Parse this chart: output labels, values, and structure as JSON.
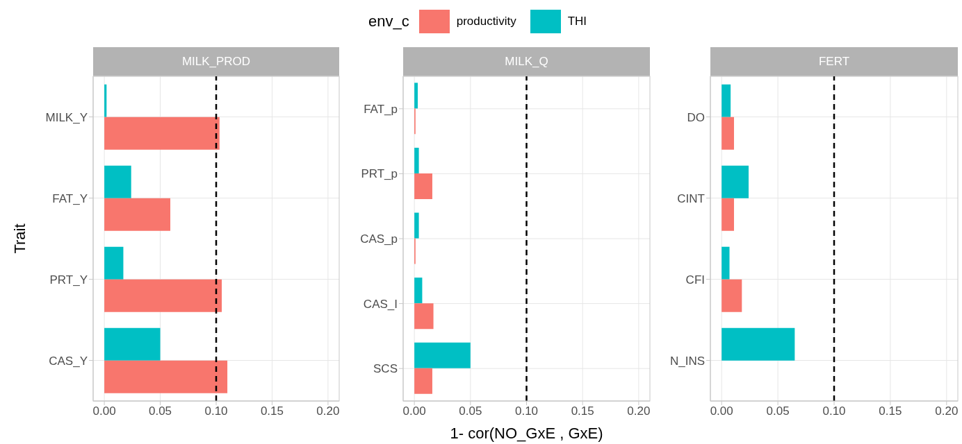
{
  "chart_data": [
    {
      "type": "bar",
      "orientation": "horizontal",
      "title": "MILK_PROD",
      "ylabel": "Trait",
      "legend_title": "env_c",
      "legend": "top",
      "grid": true,
      "categories": [
        "MILK_Y",
        "FAT_Y",
        "PRT_Y",
        "CAS_Y"
      ],
      "series": [
        {
          "name": "productivity",
          "color": "#f8766d",
          "values": [
            0.103,
            0.059,
            0.105,
            0.11
          ]
        },
        {
          "name": "THI",
          "color": "#00bfc4",
          "values": [
            0.002,
            0.024,
            0.017,
            0.05
          ]
        }
      ],
      "xlim": [
        -0.01,
        0.21
      ],
      "xticks": [
        {
          "value": 0,
          "label": "0.00"
        },
        {
          "value": 0.05,
          "label": "0.05"
        },
        {
          "value": 0.1,
          "label": "0.10"
        },
        {
          "value": 0.15,
          "label": "0.15"
        },
        {
          "value": 0.2,
          "label": "0.20"
        }
      ],
      "ref_lines": [
        {
          "axis": "x",
          "value": 0.1,
          "color": "#000000",
          "line_style": "dashed"
        }
      ]
    },
    {
      "type": "bar",
      "orientation": "horizontal",
      "title": "MILK_Q",
      "xlabel": "1- cor(NO_GxE , GxE)",
      "grid": true,
      "categories": [
        "FAT_p",
        "PRT_p",
        "CAS_p",
        "CAS_I",
        "SCS"
      ],
      "series": [
        {
          "color": "#f8766d",
          "values": [
            0.001,
            0.016,
            0.001,
            0.017,
            0.016
          ]
        },
        {
          "color": "#00bfc4",
          "values": [
            0.003,
            0.004,
            0.004,
            0.007,
            0.05
          ]
        }
      ],
      "xlim": [
        -0.01,
        0.21
      ],
      "xticks": [
        {
          "value": 0,
          "label": "0.00"
        },
        {
          "value": 0.05,
          "label": "0.05"
        },
        {
          "value": 0.1,
          "label": "0.10"
        },
        {
          "value": 0.15,
          "label": "0.15"
        },
        {
          "value": 0.2,
          "label": "0.20"
        }
      ],
      "ref_lines": [
        {
          "axis": "x",
          "value": 0.1,
          "color": "#000000",
          "line_style": "dashed"
        }
      ]
    },
    {
      "type": "bar",
      "orientation": "horizontal",
      "title": "FERT",
      "grid": true,
      "categories": [
        "DO",
        "CINT",
        "CFI",
        "N_INS"
      ],
      "series": [
        {
          "color": "#f8766d",
          "values": [
            0.011,
            0.011,
            0.018,
            null
          ]
        },
        {
          "color": "#00bfc4",
          "values": [
            0.008,
            0.024,
            0.007,
            0.065
          ]
        }
      ],
      "xlim": [
        -0.01,
        0.21
      ],
      "xticks": [
        {
          "value": 0,
          "label": "0.00"
        },
        {
          "value": 0.05,
          "label": "0.05"
        },
        {
          "value": 0.1,
          "label": "0.10"
        },
        {
          "value": 0.15,
          "label": "0.15"
        },
        {
          "value": 0.2,
          "label": "0.20"
        }
      ],
      "ref_lines": [
        {
          "axis": "x",
          "value": 0.1,
          "color": "#000000",
          "line_style": "dashed"
        }
      ]
    }
  ]
}
